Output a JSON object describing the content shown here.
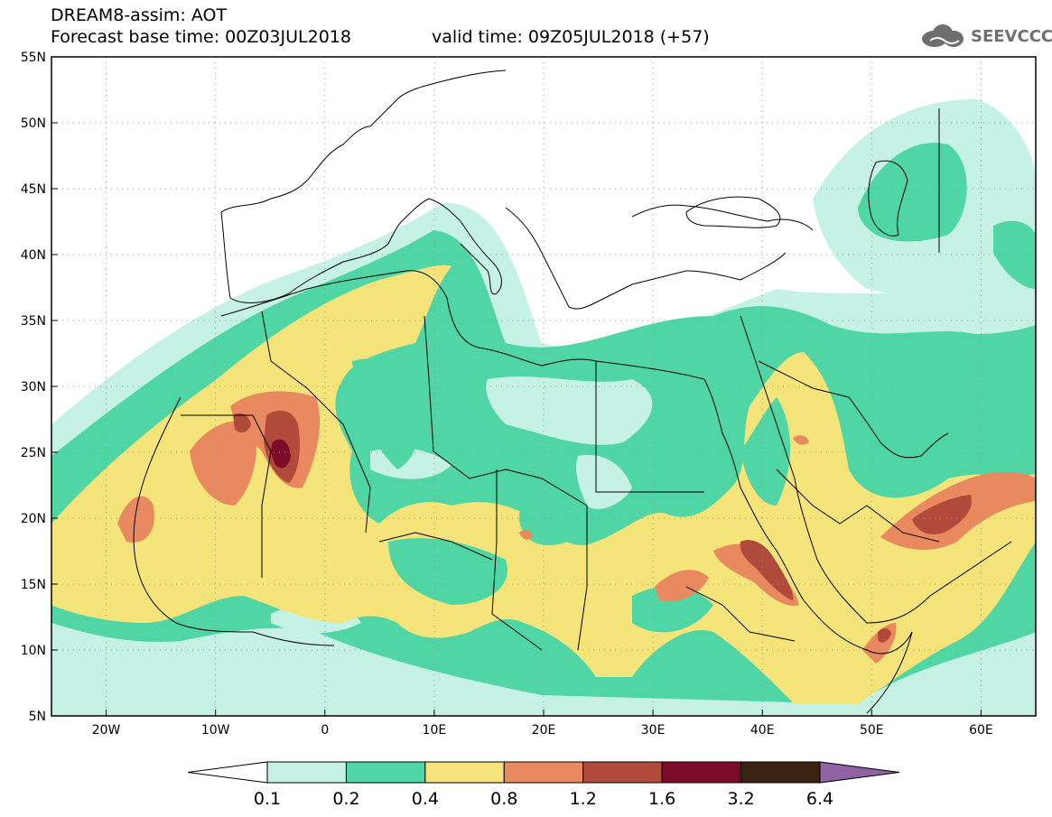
{
  "title": {
    "line1": "DREAM8-assim: AOT",
    "line2": "Forecast base time: 00Z03JUL2018",
    "valid": "valid time: 09Z05JUL2018 (+57)"
  },
  "logo": {
    "text": "SEEVCCC",
    "icon": "cloud-logo-icon"
  },
  "map": {
    "lon_range": [
      -25,
      65
    ],
    "lat_range": [
      5,
      55
    ],
    "lat_ticks": [
      {
        "v": 55,
        "label": "55N"
      },
      {
        "v": 50,
        "label": "50N"
      },
      {
        "v": 45,
        "label": "45N"
      },
      {
        "v": 40,
        "label": "40N"
      },
      {
        "v": 35,
        "label": "35N"
      },
      {
        "v": 30,
        "label": "30N"
      },
      {
        "v": 25,
        "label": "25N"
      },
      {
        "v": 20,
        "label": "20N"
      },
      {
        "v": 15,
        "label": "15N"
      },
      {
        "v": 10,
        "label": "10N"
      },
      {
        "v": 5,
        "label": "5N"
      }
    ],
    "lon_ticks": [
      {
        "v": -20,
        "label": "20W"
      },
      {
        "v": -10,
        "label": "10W"
      },
      {
        "v": 0,
        "label": "0"
      },
      {
        "v": 10,
        "label": "10E"
      },
      {
        "v": 20,
        "label": "20E"
      },
      {
        "v": 30,
        "label": "30E"
      },
      {
        "v": 40,
        "label": "40E"
      },
      {
        "v": 50,
        "label": "50E"
      },
      {
        "v": 60,
        "label": "60E"
      }
    ]
  },
  "colorbar": {
    "colors": [
      "#ffffff",
      "#c6f2e6",
      "#4fd6a4",
      "#f5e47a",
      "#e8895f",
      "#b04a3a",
      "#7c0b28",
      "#3a2313",
      "#8f62a6"
    ],
    "labels": [
      "0.1",
      "0.2",
      "0.4",
      "0.8",
      "1.2",
      "1.6",
      "3.2",
      "6.4"
    ]
  }
}
